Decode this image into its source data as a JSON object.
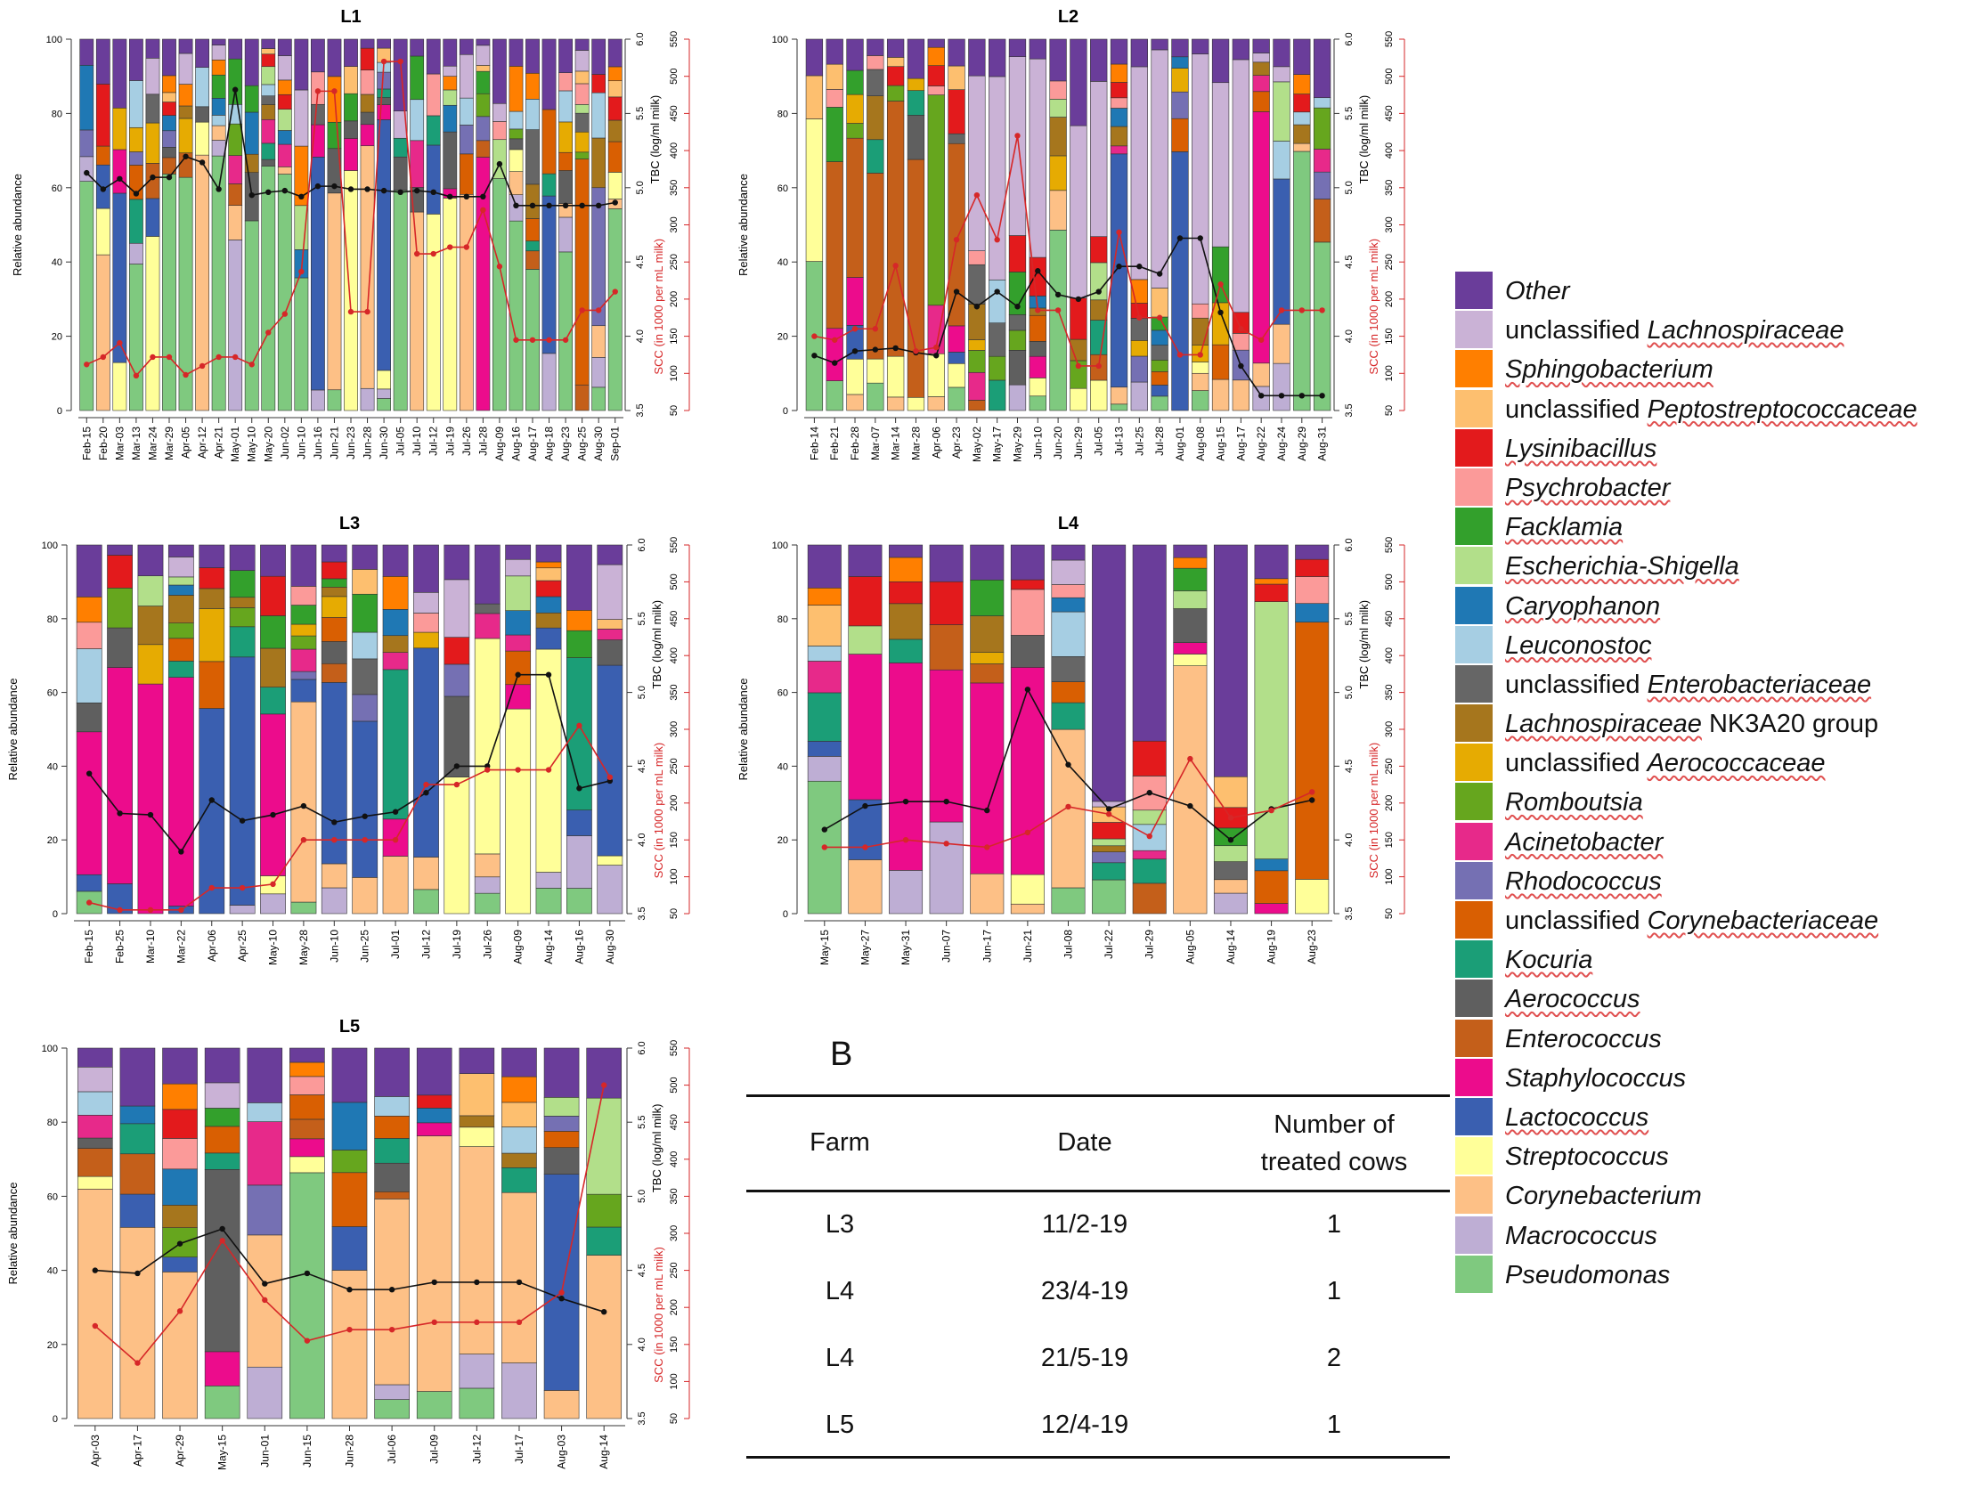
{
  "legend": [
    {
      "pre": "",
      "it": "Other",
      "post": "",
      "ul": false,
      "color": "#6a3d9a"
    },
    {
      "pre": "unclassified ",
      "it": "Lachnospiraceae",
      "post": "",
      "ul": true,
      "color": "#cab2d6"
    },
    {
      "pre": "",
      "it": "Sphingobacterium",
      "post": "",
      "ul": true,
      "color": "#ff7f00"
    },
    {
      "pre": "unclassified ",
      "it": "Peptostreptococcaceae",
      "post": "",
      "ul": true,
      "color": "#fdbf6f"
    },
    {
      "pre": "",
      "it": "Lysinibacillus",
      "post": "",
      "ul": true,
      "color": "#e31a1c"
    },
    {
      "pre": "",
      "it": "Psychrobacter",
      "post": "",
      "ul": true,
      "color": "#fb9a99"
    },
    {
      "pre": "",
      "it": "Facklamia",
      "post": "",
      "ul": true,
      "color": "#33a02c"
    },
    {
      "pre": "",
      "it": "Escherichia-Shigella",
      "post": "",
      "ul": true,
      "color": "#b2df8a"
    },
    {
      "pre": "",
      "it": "Caryophanon",
      "post": "",
      "ul": true,
      "color": "#1f78b4"
    },
    {
      "pre": "",
      "it": "Leuconostoc",
      "post": "",
      "ul": true,
      "color": "#a6cee3"
    },
    {
      "pre": "unclassified ",
      "it": "Enterobacteriaceae",
      "post": "",
      "ul": true,
      "color": "#666666"
    },
    {
      "pre": "",
      "it": "Lachnospiraceae",
      "post": " NK3A20 group",
      "ul": true,
      "color": "#a6761d"
    },
    {
      "pre": "unclassified ",
      "it": "Aerococcaceae",
      "post": "",
      "ul": true,
      "color": "#e6ab02"
    },
    {
      "pre": "",
      "it": "Romboutsia",
      "post": "",
      "ul": true,
      "color": "#66a61e"
    },
    {
      "pre": "",
      "it": "Acinetobacter",
      "post": "",
      "ul": true,
      "color": "#e7298a"
    },
    {
      "pre": "",
      "it": "Rhodococcus",
      "post": "",
      "ul": true,
      "color": "#7570b3"
    },
    {
      "pre": "unclassified ",
      "it": "Corynebacteriaceae",
      "post": "",
      "ul": true,
      "color": "#d95f02"
    },
    {
      "pre": "",
      "it": "Kocuria",
      "post": "",
      "ul": true,
      "color": "#1b9e77"
    },
    {
      "pre": "",
      "it": "Aerococcus",
      "post": "",
      "ul": true,
      "color": "#5f5f5f"
    },
    {
      "pre": "",
      "it": "Enterococcus",
      "post": "",
      "ul": false,
      "color": "#c45f1a"
    },
    {
      "pre": "",
      "it": "Staphylococcus",
      "post": "",
      "ul": false,
      "color": "#ec0c8c"
    },
    {
      "pre": "",
      "it": "Lactococcus",
      "post": "",
      "ul": true,
      "color": "#3a5fb0"
    },
    {
      "pre": "",
      "it": "Streptococcus",
      "post": "",
      "ul": false,
      "color": "#ffff99"
    },
    {
      "pre": "",
      "it": "Corynebacterium",
      "post": "",
      "ul": false,
      "color": "#fdc086"
    },
    {
      "pre": "",
      "it": "Macrococcus",
      "post": "",
      "ul": false,
      "color": "#beaed4"
    },
    {
      "pre": "",
      "it": "Pseudomonas",
      "post": "",
      "ul": false,
      "color": "#7fc97f"
    }
  ],
  "chart_data": [
    {
      "type": "bar",
      "stacked": true,
      "title": "L1",
      "ylabel": "Relative abundance",
      "y2label": "TBC (log/ml milk)",
      "y3label": "SCC (in 1000 per mL milk)",
      "ylim": [
        0,
        100
      ],
      "yticks": [
        "0",
        "20",
        "40",
        "60",
        "80",
        "100"
      ],
      "y2lim": [
        3.5,
        6.0
      ],
      "y2ticks": [
        "3.5",
        "4.0",
        "4.5",
        "5.0",
        "5.5",
        "6.0"
      ],
      "y3lim": [
        50,
        550
      ],
      "y3ticks": [
        "50",
        "100",
        "150",
        "200",
        "250",
        "300",
        "350",
        "400",
        "450",
        "500",
        "550"
      ],
      "categories": [
        "Feb-15",
        "Feb-20",
        "Mar-03",
        "Mar-13",
        "Mar-24",
        "Mar-29",
        "Apr-05",
        "Apr-12",
        "Apr-21",
        "May-01",
        "May-10",
        "May-20",
        "Jun-02",
        "Jun-10",
        "Jun-16",
        "Jun-21",
        "Jun-23",
        "Jun-28",
        "Jun-30",
        "Jul-05",
        "Jul-10",
        "Jul-12",
        "Jul-19",
        "Jul-26",
        "Jul-28",
        "Aug-09",
        "Aug-16",
        "Aug-17",
        "Aug-18",
        "Aug-23",
        "Aug-25",
        "Aug-30",
        "Sep-01"
      ],
      "tbc": [
        5.1,
        4.99,
        5.06,
        4.96,
        5.07,
        5.07,
        5.21,
        5.17,
        4.99,
        5.66,
        4.95,
        4.97,
        4.98,
        4.94,
        5.01,
        5.01,
        4.99,
        4.99,
        4.98,
        4.97,
        4.98,
        4.97,
        4.94,
        4.94,
        4.94,
        5.16,
        4.88,
        4.88,
        4.88,
        4.88,
        4.88,
        4.88,
        4.9
      ],
      "scc": [
        112,
        122,
        141,
        97,
        122,
        122,
        98,
        110,
        122,
        122,
        112,
        155,
        180,
        237,
        480,
        480,
        183,
        183,
        520,
        520,
        261,
        261,
        270,
        270,
        320,
        244,
        145,
        145,
        145,
        145,
        185,
        185,
        210
      ]
    },
    {
      "type": "bar",
      "stacked": true,
      "title": "L2",
      "ylabel": "Relative abundance",
      "y2label": "TBC (log/ml milk)",
      "y3label": "SCC (in 1000 per mL milk)",
      "ylim": [
        0,
        100
      ],
      "yticks": [
        "0",
        "20",
        "40",
        "60",
        "80",
        "100"
      ],
      "y2lim": [
        3.5,
        6.0
      ],
      "y2ticks": [
        "3.5",
        "4.0",
        "4.5",
        "5.0",
        "5.5",
        "6.0"
      ],
      "y3lim": [
        50,
        550
      ],
      "y3ticks": [
        "50",
        "100",
        "150",
        "200",
        "250",
        "300",
        "350",
        "400",
        "450",
        "500",
        "550"
      ],
      "categories": [
        "Feb-14",
        "Feb-21",
        "Feb-28",
        "Mar-07",
        "Mar-14",
        "Mar-28",
        "Apr-06",
        "Apr-23",
        "May-02",
        "May-17",
        "May-29",
        "Jun-10",
        "Jun-20",
        "Jun-29",
        "Jul-05",
        "Jul-13",
        "Jul-25",
        "Jul-28",
        "Aug-01",
        "Aug-08",
        "Aug-15",
        "Aug-17",
        "Aug-22",
        "Aug-24",
        "Aug-29",
        "Aug-31"
      ],
      "tbc": [
        3.87,
        3.82,
        3.9,
        3.91,
        3.92,
        3.89,
        3.87,
        4.3,
        4.2,
        4.3,
        4.2,
        4.44,
        4.28,
        4.25,
        4.3,
        4.47,
        4.47,
        4.42,
        4.66,
        4.66,
        4.16,
        3.8,
        3.6,
        3.6,
        3.6,
        3.6
      ],
      "scc": [
        150,
        145,
        160,
        160,
        245,
        130,
        135,
        280,
        340,
        280,
        420,
        185,
        185,
        110,
        110,
        290,
        175,
        175,
        125,
        125,
        220,
        160,
        145,
        185,
        185,
        185
      ]
    },
    {
      "type": "bar",
      "stacked": true,
      "title": "L3",
      "ylabel": "Relative abundance",
      "y2label": "TBC (log/ml milk)",
      "y3label": "SCC (in 1000 per mL milk)",
      "ylim": [
        0,
        100
      ],
      "yticks": [
        "0",
        "20",
        "40",
        "60",
        "80",
        "100"
      ],
      "y2lim": [
        3.5,
        6.0
      ],
      "y2ticks": [
        "3.5",
        "4.0",
        "4.5",
        "5.0",
        "5.5",
        "6.0"
      ],
      "y3lim": [
        50,
        550
      ],
      "y3ticks": [
        "50",
        "100",
        "150",
        "200",
        "250",
        "300",
        "350",
        "400",
        "450",
        "500",
        "550"
      ],
      "categories": [
        "Feb-15",
        "Feb-25",
        "Mar-10",
        "Mar-22",
        "Apr-06",
        "Apr-25",
        "May-10",
        "May-28",
        "Jun-10",
        "Jun-25",
        "Jul-01",
        "Jul-12",
        "Jul-19",
        "Jul-26",
        "Aug-09",
        "Aug-14",
        "Aug-16",
        "Aug-30"
      ],
      "tbc": [
        4.45,
        4.18,
        4.17,
        3.92,
        4.27,
        4.13,
        4.17,
        4.23,
        4.12,
        4.16,
        4.19,
        4.32,
        4.5,
        4.5,
        5.12,
        5.12,
        4.35,
        4.4
      ],
      "scc": [
        65,
        55,
        55,
        55,
        85,
        85,
        90,
        150,
        150,
        150,
        150,
        225,
        225,
        245,
        245,
        245,
        305,
        235
      ]
    },
    {
      "type": "bar",
      "stacked": true,
      "title": "L4",
      "ylabel": "Relative abundance",
      "y2label": "TBC (log/ml milk)",
      "y3label": "SCC (in 1000 per mL milk)",
      "ylim": [
        0,
        100
      ],
      "yticks": [
        "0",
        "20",
        "40",
        "60",
        "80",
        "100"
      ],
      "y2lim": [
        3.5,
        6.0
      ],
      "y2ticks": [
        "3.5",
        "4.0",
        "4.5",
        "5.0",
        "5.5",
        "6.0"
      ],
      "y3lim": [
        50,
        550
      ],
      "y3ticks": [
        "50",
        "100",
        "150",
        "200",
        "250",
        "300",
        "350",
        "400",
        "450",
        "500",
        "550"
      ],
      "categories": [
        "May-15",
        "May-27",
        "May-31",
        "Jun-07",
        "Jun-17",
        "Jun-21",
        "Jul-08",
        "Jul-22",
        "Jul-29",
        "Aug-05",
        "Aug-14",
        "Aug-19",
        "Aug-23"
      ],
      "tbc": [
        4.07,
        4.23,
        4.26,
        4.26,
        4.2,
        5.02,
        4.51,
        4.21,
        4.32,
        4.23,
        4.0,
        4.21,
        4.27
      ],
      "scc": [
        140,
        140,
        150,
        145,
        140,
        160,
        195,
        185,
        155,
        260,
        180,
        190,
        215
      ]
    },
    {
      "type": "bar",
      "stacked": true,
      "title": "L5",
      "ylabel": "Relative abundance",
      "y2label": "TBC (log/ml milk)",
      "y3label": "SCC (in 1000 per mL milk)",
      "ylim": [
        0,
        100
      ],
      "yticks": [
        "0",
        "20",
        "40",
        "60",
        "80",
        "100"
      ],
      "y2lim": [
        3.5,
        6.0
      ],
      "y2ticks": [
        "3.5",
        "4.0",
        "4.5",
        "5.0",
        "5.5",
        "6.0"
      ],
      "y3lim": [
        50,
        550
      ],
      "y3ticks": [
        "50",
        "100",
        "150",
        "200",
        "250",
        "300",
        "350",
        "400",
        "450",
        "500",
        "550"
      ],
      "categories": [
        "Apr-03",
        "Apr-17",
        "Apr-29",
        "May-15",
        "Jun-01",
        "Jun-15",
        "Jun-28",
        "Jul-06",
        "Jul-09",
        "Jul-12",
        "Jul-17",
        "Aug-03",
        "Aug-14"
      ],
      "tbc": [
        4.5,
        4.48,
        4.68,
        4.78,
        4.41,
        4.48,
        4.37,
        4.37,
        4.42,
        4.42,
        4.42,
        4.31,
        4.22
      ],
      "scc": [
        175,
        125,
        195,
        290,
        210,
        155,
        170,
        170,
        180,
        180,
        180,
        220,
        500
      ]
    }
  ],
  "table": {
    "letter": "B",
    "headers": [
      "Farm",
      "Date",
      "Number of",
      "treated cows"
    ],
    "rows": [
      [
        "L3",
        "11/2-19",
        "1"
      ],
      [
        "L4",
        "23/4-19",
        "1"
      ],
      [
        "L4",
        "21/5-19",
        "2"
      ],
      [
        "L5",
        "12/4-19",
        "1"
      ]
    ]
  }
}
